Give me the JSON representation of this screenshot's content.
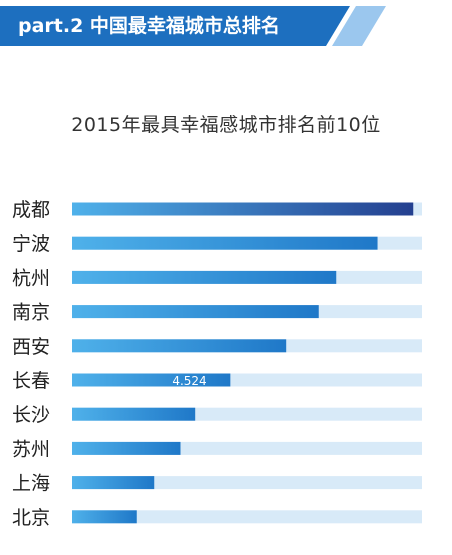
{
  "banner": {
    "text": "part.2 中国最幸福城市总排名",
    "color": "#1d6fbf",
    "accent": "#9bc7ee"
  },
  "chart_data": {
    "type": "bar",
    "orientation": "horizontal",
    "title": "2015年最具幸福感城市排名前10位",
    "categories": [
      "成都",
      "宁波",
      "杭州",
      "南京",
      "西安",
      "长春",
      "长沙",
      "苏州",
      "上海",
      "北京"
    ],
    "values": [
      9.75,
      8.73,
      7.55,
      7.05,
      6.12,
      4.524,
      3.52,
      3.1,
      2.35,
      1.85
    ],
    "data_labels": [
      "",
      "",
      "",
      "",
      "",
      "4.524",
      "",
      "",
      "",
      ""
    ],
    "xlim": [
      0,
      10
    ],
    "grid": false,
    "legend": "none",
    "colors": {
      "track": "#d8eaf8",
      "bar_start": "#4fb1ea",
      "bar_end": "#1f78c8",
      "top_bar_end": "#243f8f",
      "label_text": "#ffffff"
    }
  }
}
